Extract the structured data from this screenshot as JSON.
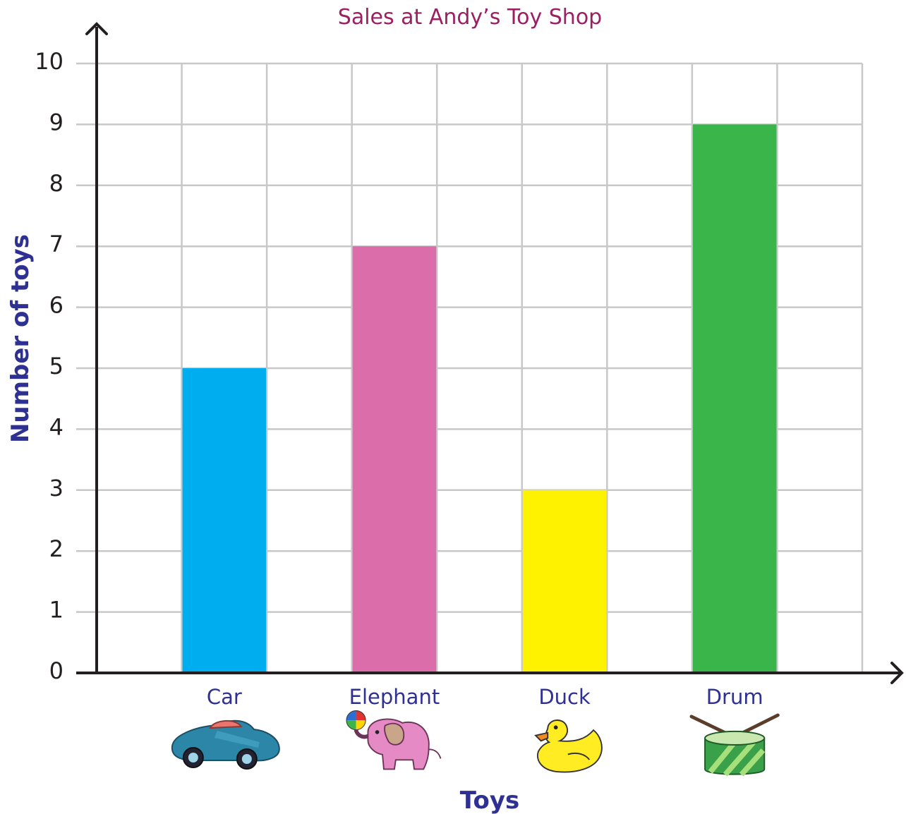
{
  "colors": {
    "title": "#9b1f63",
    "axis_label": "#2e3192",
    "tick_label": "#231f20",
    "grid": "#c8c8c8",
    "axis": "#231f20"
  },
  "chart_data": {
    "type": "bar",
    "title": "Sales at Andy’s Toy Shop",
    "xlabel": "Toys",
    "ylabel": "Number of toys",
    "categories": [
      "Car",
      "Elephant",
      "Duck",
      "Drum"
    ],
    "values": [
      5,
      7,
      3,
      9
    ],
    "bar_colors": [
      "#00aeef",
      "#dc6dab",
      "#fff200",
      "#39b54a"
    ],
    "category_icons": [
      "toy-car-icon",
      "toy-elephant-icon",
      "rubber-duck-icon",
      "toy-drum-icon"
    ],
    "ylim": [
      0,
      10
    ],
    "yticks": [
      "0",
      "1",
      "2",
      "3",
      "4",
      "5",
      "6",
      "7",
      "8",
      "9",
      "10"
    ],
    "grid": true,
    "legend": "none"
  }
}
